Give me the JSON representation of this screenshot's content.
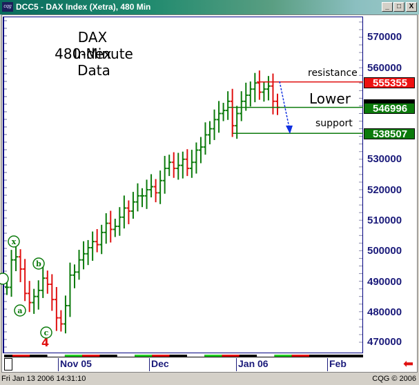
{
  "window": {
    "title": "DCC5 - DAX Index (Xetra), 480 Min",
    "icon": "cqg-logo-icon",
    "buttons": {
      "minimize": "_",
      "maximize": "□",
      "close": "X"
    }
  },
  "status_bar": {
    "timestamp": "Fri Jan 13 2006 14:31:10",
    "copyright": "CQG © 2006"
  },
  "annotations": {
    "title_line1": "DAX Index",
    "title_line2": "480-Minute Data",
    "resistance": "resistance",
    "lower": "Lower",
    "support": "support",
    "wave_labels": [
      "x",
      "a",
      "b",
      "c"
    ],
    "wave_count": "4"
  },
  "price_tags": {
    "resistance": {
      "value": "555355",
      "color": "#ee1111"
    },
    "last": {
      "value": "546996",
      "color": "#0b7a0b"
    },
    "support": {
      "value": "538507",
      "color": "#0b7a0b"
    }
  },
  "colors": {
    "up": "#0b7a0b",
    "down": "#e01010",
    "axis": "#1a1a7a",
    "arrow": "#1030e0"
  },
  "chart_data": {
    "type": "bar",
    "title": "DAX Index 480-Minute Data",
    "xlabel": "",
    "ylabel": "",
    "ylim": [
      465000,
      580000
    ],
    "yticks": [
      470000,
      480000,
      490000,
      500000,
      510000,
      520000,
      530000,
      540000,
      550000,
      560000,
      570000
    ],
    "x_tick_labels": [
      "Nov 05",
      "Dec",
      "Jan 06",
      "Feb"
    ],
    "horizontal_lines": [
      {
        "label": "resistance",
        "value": 555355,
        "color": "#e01010"
      },
      {
        "label": "support (upper)",
        "value": 546996,
        "color": "#0b7a0b"
      },
      {
        "label": "support",
        "value": 538507,
        "color": "#0b7a0b"
      }
    ],
    "series": [
      {
        "name": "DAX 480-min close (approx)",
        "values": [
          488000,
          497000,
          498000,
          494000,
          486000,
          483000,
          485000,
          487000,
          491000,
          489000,
          484000,
          478000,
          476000,
          482000,
          492000,
          493000,
          497000,
          499000,
          501000,
          503000,
          502000,
          506000,
          509000,
          507000,
          508000,
          511000,
          514000,
          513000,
          516000,
          518000,
          518000,
          520000,
          521000,
          519000,
          523000,
          527000,
          529000,
          527000,
          528000,
          530000,
          527000,
          529000,
          533000,
          534000,
          538000,
          540000,
          543000,
          545000,
          546000,
          549000,
          541000,
          545000,
          549000,
          551000,
          553000,
          555000,
          552000,
          553000,
          554000,
          549000,
          547000
        ]
      }
    ]
  }
}
